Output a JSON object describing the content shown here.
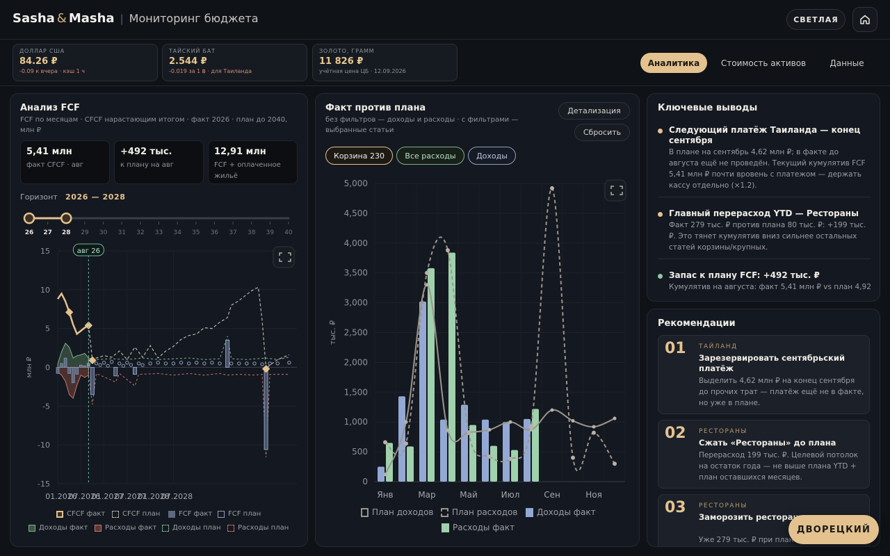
{
  "header": {
    "brand_a": "Sasha",
    "brand_amp": "&",
    "brand_b": "Masha",
    "separator": "|",
    "subtitle": "Мониторинг бюджета",
    "theme_button": "СВЕТЛАЯ",
    "home_icon": "home-icon"
  },
  "rates": [
    {
      "label": "ДОЛЛАР США",
      "value": "84.26 ₽",
      "note": "-0.09 к вчера · кэш 1 ч"
    },
    {
      "label": "ТАЙСКИЙ БАТ",
      "value": "2.544 ₽",
      "note": "-0.019 за 1 ฿ · для Таиланда"
    },
    {
      "label": "ЗОЛОТО, ГРАММ",
      "value": "11 826 ₽",
      "note": "учётная цена ЦБ · 12.09.2026"
    }
  ],
  "tabs": {
    "analytics": "Аналитика",
    "assets": "Стоимость активов",
    "data": "Данные"
  },
  "fcf": {
    "title": "Анализ FCF",
    "subtitle": "FCF по месяцам · CFCF нарастающим итогом · факт 2026 · план до 2040, млн ₽",
    "kpis": [
      {
        "value": "5,41 млн",
        "label": "факт CFCF · авг"
      },
      {
        "value": "+492 тыс.",
        "label": "к плану на авг"
      },
      {
        "value": "12,91 млн",
        "label": "FCF + оплаченное жильё"
      }
    ],
    "horizon_label": "Горизонт",
    "horizon_value": "2026 — 2028",
    "slider": {
      "from": 26,
      "to": 28,
      "years": [
        "26",
        "27",
        "28",
        "29",
        "30",
        "31",
        "32",
        "33",
        "34",
        "35",
        "36",
        "37",
        "38",
        "39",
        "40"
      ]
    },
    "marker_label": "авг 26"
  },
  "fcf_chart": {
    "type": "area",
    "ylabel": "млн ₽",
    "ylim": [
      -15,
      15
    ],
    "yticks": [
      "15",
      "10",
      "5",
      "0",
      "-5",
      "-10",
      "-15"
    ],
    "xticks": [
      "01.2026",
      "07.2026",
      "01.2027",
      "07.2027",
      "01.2028",
      "07.2028"
    ],
    "legend": [
      "CFCF факт",
      "CFCF план",
      "FCF факт",
      "FCF план",
      "Доходы факт",
      "Расходы факт",
      "Доходы план",
      "Расходы план"
    ],
    "cfcf_fact": [
      {
        "m": 0,
        "v": 8.8
      },
      {
        "m": 1,
        "v": 9.5
      },
      {
        "m": 2,
        "v": 8.5
      },
      {
        "m": 3,
        "v": 7.1
      },
      {
        "m": 4,
        "v": 5.5
      },
      {
        "m": 5,
        "v": 4.3
      },
      {
        "m": 6,
        "v": 4.7
      },
      {
        "m": 7,
        "v": 5.1
      },
      {
        "m": 8,
        "v": 5.4
      }
    ],
    "cfcf_plan": [
      {
        "m": 8,
        "v": 5.4
      },
      {
        "m": 9,
        "v": 0.9
      },
      {
        "m": 10,
        "v": 1.2
      },
      {
        "m": 12,
        "v": 1.5
      },
      {
        "m": 14,
        "v": 1.3
      },
      {
        "m": 16,
        "v": 2.1
      },
      {
        "m": 18,
        "v": 1.0
      },
      {
        "m": 20,
        "v": 2.6
      },
      {
        "m": 22,
        "v": 1.3
      },
      {
        "m": 24,
        "v": 2.8
      },
      {
        "m": 26,
        "v": 1.2
      },
      {
        "m": 28,
        "v": 2.1
      },
      {
        "m": 30,
        "v": 2.7
      },
      {
        "m": 32,
        "v": 3.6
      },
      {
        "m": 34,
        "v": 4.1
      },
      {
        "m": 36,
        "v": 4.3
      },
      {
        "m": 38,
        "v": 5.1
      },
      {
        "m": 40,
        "v": 5.0
      },
      {
        "m": 42,
        "v": 5.8
      },
      {
        "m": 44,
        "v": 6.4
      },
      {
        "m": 45,
        "v": 8.0
      },
      {
        "m": 47,
        "v": 8.6
      },
      {
        "m": 49,
        "v": 9.4
      },
      {
        "m": 51,
        "v": 10.1
      },
      {
        "m": 52,
        "v": 10.3
      },
      {
        "m": 53,
        "v": 6.0
      },
      {
        "m": 54,
        "v": -0.2
      },
      {
        "m": 55,
        "v": 0.3
      },
      {
        "m": 57,
        "v": 1.0
      },
      {
        "m": 60,
        "v": 1.6
      }
    ],
    "fcf_fact": [
      {
        "m": 0,
        "v": -0.8
      },
      {
        "m": 1,
        "v": 0.5
      },
      {
        "m": 2,
        "v": 1.2
      },
      {
        "m": 3,
        "v": -0.8
      },
      {
        "m": 4,
        "v": -2.0
      },
      {
        "m": 5,
        "v": -0.9
      },
      {
        "m": 6,
        "v": 0.3
      },
      {
        "m": 7,
        "v": 0.2
      },
      {
        "m": 8,
        "v": 0.4
      }
    ],
    "fcf_plan": [
      {
        "m": 8,
        "v": 0.4
      },
      {
        "m": 9,
        "v": -3.5
      },
      {
        "m": 10,
        "v": 0.5
      },
      {
        "m": 11,
        "v": 0.3
      },
      {
        "m": 12,
        "v": 0.6
      },
      {
        "m": 13,
        "v": 0.2
      },
      {
        "m": 14,
        "v": 0.7
      },
      {
        "m": 15,
        "v": -1.1
      },
      {
        "m": 16,
        "v": 0.5
      },
      {
        "m": 17,
        "v": 0.2
      },
      {
        "m": 18,
        "v": 0.6
      },
      {
        "m": 19,
        "v": 0.3
      },
      {
        "m": 20,
        "v": -0.9
      },
      {
        "m": 21,
        "v": 0.5
      },
      {
        "m": 22,
        "v": 0.3
      },
      {
        "m": 24,
        "v": 0.5
      },
      {
        "m": 26,
        "v": 0.6
      },
      {
        "m": 28,
        "v": 0.5
      },
      {
        "m": 30,
        "v": 0.5
      },
      {
        "m": 32,
        "v": 0.6
      },
      {
        "m": 34,
        "v": 0.5
      },
      {
        "m": 36,
        "v": 0.6
      },
      {
        "m": 38,
        "v": 0.5
      },
      {
        "m": 40,
        "v": 0.6
      },
      {
        "m": 42,
        "v": 0.5
      },
      {
        "m": 44,
        "v": 3.5
      },
      {
        "m": 45,
        "v": 0.5
      },
      {
        "m": 47,
        "v": 0.5
      },
      {
        "m": 49,
        "v": 0.5
      },
      {
        "m": 51,
        "v": 0.5
      },
      {
        "m": 53,
        "v": 0.4
      },
      {
        "m": 54,
        "v": -10.6
      },
      {
        "m": 55,
        "v": 0.5
      },
      {
        "m": 57,
        "v": 0.5
      },
      {
        "m": 60,
        "v": 0.6
      }
    ],
    "income_fact": [
      {
        "m": 0,
        "v": 0.4
      },
      {
        "m": 1,
        "v": 2.0
      },
      {
        "m": 2,
        "v": 3.1
      },
      {
        "m": 3,
        "v": 2.6
      },
      {
        "m": 4,
        "v": 1.2
      },
      {
        "m": 5,
        "v": 1.5
      },
      {
        "m": 6,
        "v": 1.6
      },
      {
        "m": 7,
        "v": 1.8
      },
      {
        "m": 8,
        "v": 1.2
      }
    ],
    "expense_fact": [
      {
        "m": 0,
        "v": -0.6
      },
      {
        "m": 1,
        "v": -1.0
      },
      {
        "m": 2,
        "v": -1.8
      },
      {
        "m": 3,
        "v": -3.5
      },
      {
        "m": 4,
        "v": -4.0
      },
      {
        "m": 5,
        "v": -2.3
      },
      {
        "m": 6,
        "v": -1.0
      },
      {
        "m": 7,
        "v": -1.3
      },
      {
        "m": 8,
        "v": -1.0
      }
    ],
    "income_plan": [
      {
        "m": 8,
        "v": 1.2
      },
      {
        "m": 10,
        "v": 1.0
      },
      {
        "m": 14,
        "v": 1.1
      },
      {
        "m": 18,
        "v": 1.0
      },
      {
        "m": 22,
        "v": 1.2
      },
      {
        "m": 26,
        "v": 1.0
      },
      {
        "m": 30,
        "v": 1.1
      },
      {
        "m": 34,
        "v": 1.2
      },
      {
        "m": 38,
        "v": 1.0
      },
      {
        "m": 42,
        "v": 1.1
      },
      {
        "m": 44,
        "v": 4.0
      },
      {
        "m": 45,
        "v": 1.1
      },
      {
        "m": 49,
        "v": 1.0
      },
      {
        "m": 54,
        "v": 1.2
      },
      {
        "m": 57,
        "v": 1.0
      },
      {
        "m": 60,
        "v": 1.3
      }
    ],
    "expense_plan": [
      {
        "m": 8,
        "v": -1.0
      },
      {
        "m": 9,
        "v": -4.8
      },
      {
        "m": 10,
        "v": -0.8
      },
      {
        "m": 15,
        "v": -1.9
      },
      {
        "m": 16,
        "v": -0.8
      },
      {
        "m": 20,
        "v": -2.4
      },
      {
        "m": 21,
        "v": -0.9
      },
      {
        "m": 26,
        "v": -0.8
      },
      {
        "m": 30,
        "v": -1.0
      },
      {
        "m": 34,
        "v": -0.8
      },
      {
        "m": 38,
        "v": -1.0
      },
      {
        "m": 42,
        "v": -0.8
      },
      {
        "m": 44,
        "v": -1.0
      },
      {
        "m": 47,
        "v": -0.9
      },
      {
        "m": 51,
        "v": -1.0
      },
      {
        "m": 53,
        "v": -0.9
      },
      {
        "m": 54,
        "v": -11.6
      },
      {
        "m": 55,
        "v": -0.9
      },
      {
        "m": 60,
        "v": -0.9
      }
    ]
  },
  "plan_fact": {
    "title": "Факт против плана",
    "subtitle": "без фильтров — доходы и расходы · с фильтрами — выбранные статьи",
    "detail_button": "Детализация",
    "reset_button": "Сбросить",
    "chips": [
      "Корзина 230",
      "Все расходы",
      "Доходы"
    ]
  },
  "plan_fact_chart": {
    "type": "bar",
    "ylabel": "тыс. ₽",
    "ylim": [
      0,
      5000
    ],
    "yticks": [
      "5,000",
      "4,500",
      "4,000",
      "3,500",
      "3,000",
      "2,500",
      "2,000",
      "1,500",
      "1,000",
      "500",
      "0"
    ],
    "categories": [
      "Янв",
      "Фев",
      "Мар",
      "Апр",
      "Май",
      "Июн",
      "Июл",
      "Авг",
      "Сен",
      "Окт",
      "Ноя",
      "Дек"
    ],
    "xtick_labels": [
      "Янв",
      "Мар",
      "Май",
      "Июл",
      "Сен",
      "Ноя"
    ],
    "legend": [
      "План доходов",
      "План расходов",
      "Доходы факт",
      "Расходы факт"
    ],
    "income_fact": [
      250,
      1430,
      3020,
      1040,
      1290,
      1040,
      1000,
      1050,
      null,
      null,
      null,
      null
    ],
    "expense_fact": [
      650,
      590,
      3580,
      3840,
      950,
      600,
      530,
      1220,
      null,
      null,
      null,
      null
    ],
    "income_plan": [
      120,
      1000,
      3300,
      860,
      830,
      870,
      1000,
      870,
      1200,
      1020,
      920,
      1060
    ],
    "expense_plan": [
      660,
      640,
      3500,
      3880,
      820,
      420,
      380,
      930,
      4920,
      400,
      820,
      300
    ]
  },
  "insights": {
    "title": "Ключевые выводы",
    "items": [
      {
        "title": "Следующий платёж Таиланда — конец сентября",
        "body": "В плане на сентябрь 4,62 млн ₽; в факте до августа ещё не проведён. Текущий кумулятив FCF 5,41 млн ₽ почти вровень с платежом — держать кассу отдельно (×1.2)."
      },
      {
        "title": "Главный перерасход YTD — Рестораны",
        "body": "Факт 279 тыс. ₽ против плана 80 тыс. ₽: +199 тыс. ₽. Это тянет кумулятив вниз сильнее остальных статей корзины/крупных."
      },
      {
        "title": "Запас к плану FCF: +492 тыс. ₽",
        "body": "Кумулятив на августа: факт 5,41 млн ₽ vs план 4,92"
      }
    ]
  },
  "recs": {
    "title": "Рекомендации",
    "items": [
      {
        "num": "01",
        "cat": "ТАЙЛАНД",
        "title": "Зарезервировать сентябрьский платёж",
        "body": "Выделить 4,62 млн ₽ на конец сентября до прочих трат — платёж ещё не в факте, но уже в плане."
      },
      {
        "num": "02",
        "cat": "РЕСТОРАНЫ",
        "title": "Сжать «Рестораны» до плана",
        "body": "Перерасход 199 тыс. ₽. Целевой потолок на остаток года — не выше плана YTD + план оставшихся месяцев."
      },
      {
        "num": "03",
        "cat": "РЕСТОРАНЫ",
        "title": "Заморозить рестораны до лимита",
        "body": "Уже 279 тыс. ₽ при плане 80 тыс. ₽."
      }
    ]
  },
  "assistant_button": "ДВОРЕЦКИЙ",
  "colors": {
    "accent": "#e4c28f",
    "income": "#93a9d4",
    "expense": "#9fd1ad",
    "plan_line": "#9c958c",
    "negative": "#d58a76"
  }
}
